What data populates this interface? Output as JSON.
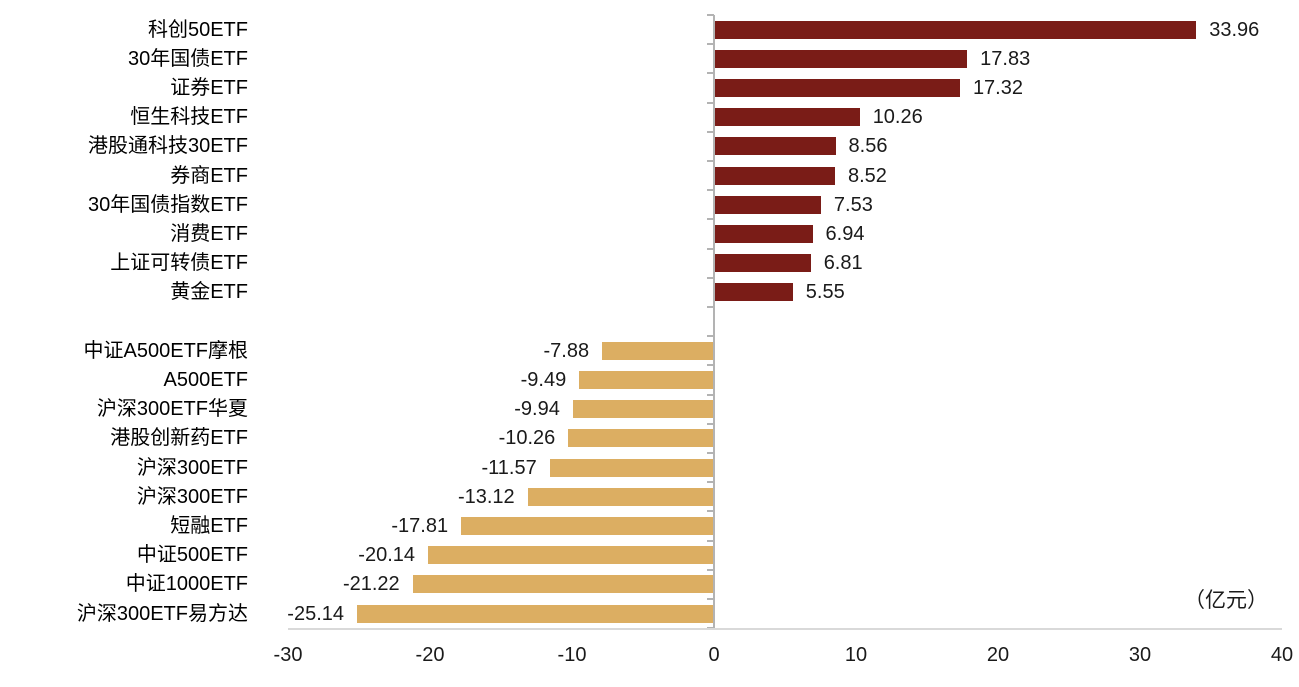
{
  "chart_data": {
    "type": "bar",
    "orientation": "horizontal",
    "title": "",
    "unit_label": "（亿元）",
    "categories": [
      "科创50ETF",
      "30年国债ETF",
      "证券ETF",
      "恒生科技ETF",
      "港股通科技30ETF",
      "券商ETF",
      "30年国债指数ETF",
      "消费ETF",
      "上证可转债ETF",
      "黄金ETF",
      "中证A500ETF摩根",
      "A500ETF",
      "沪深300ETF华夏",
      "港股创新药ETF",
      "沪深300ETF",
      "沪深300ETF",
      "短融ETF",
      "中证500ETF",
      "中证1000ETF",
      "沪深300ETF易方达"
    ],
    "values": [
      33.96,
      17.83,
      17.32,
      10.26,
      8.56,
      8.52,
      7.53,
      6.94,
      6.81,
      5.55,
      -7.88,
      -9.49,
      -9.94,
      -10.26,
      -11.57,
      -13.12,
      -17.81,
      -20.14,
      -21.22,
      -25.14
    ],
    "gap_after_index": 9,
    "x_ticks": [
      -30,
      -20,
      -10,
      0,
      10,
      20,
      30,
      40
    ],
    "xlim": [
      -30,
      40
    ],
    "grid": false,
    "legend": "none",
    "colors": {
      "positive_bar": "#7a1c17",
      "negative_bar": "#dcae62",
      "axis_line": "#d9d9d9",
      "zero_line": "#b3b3b3",
      "text": "#1a1a1a"
    }
  }
}
